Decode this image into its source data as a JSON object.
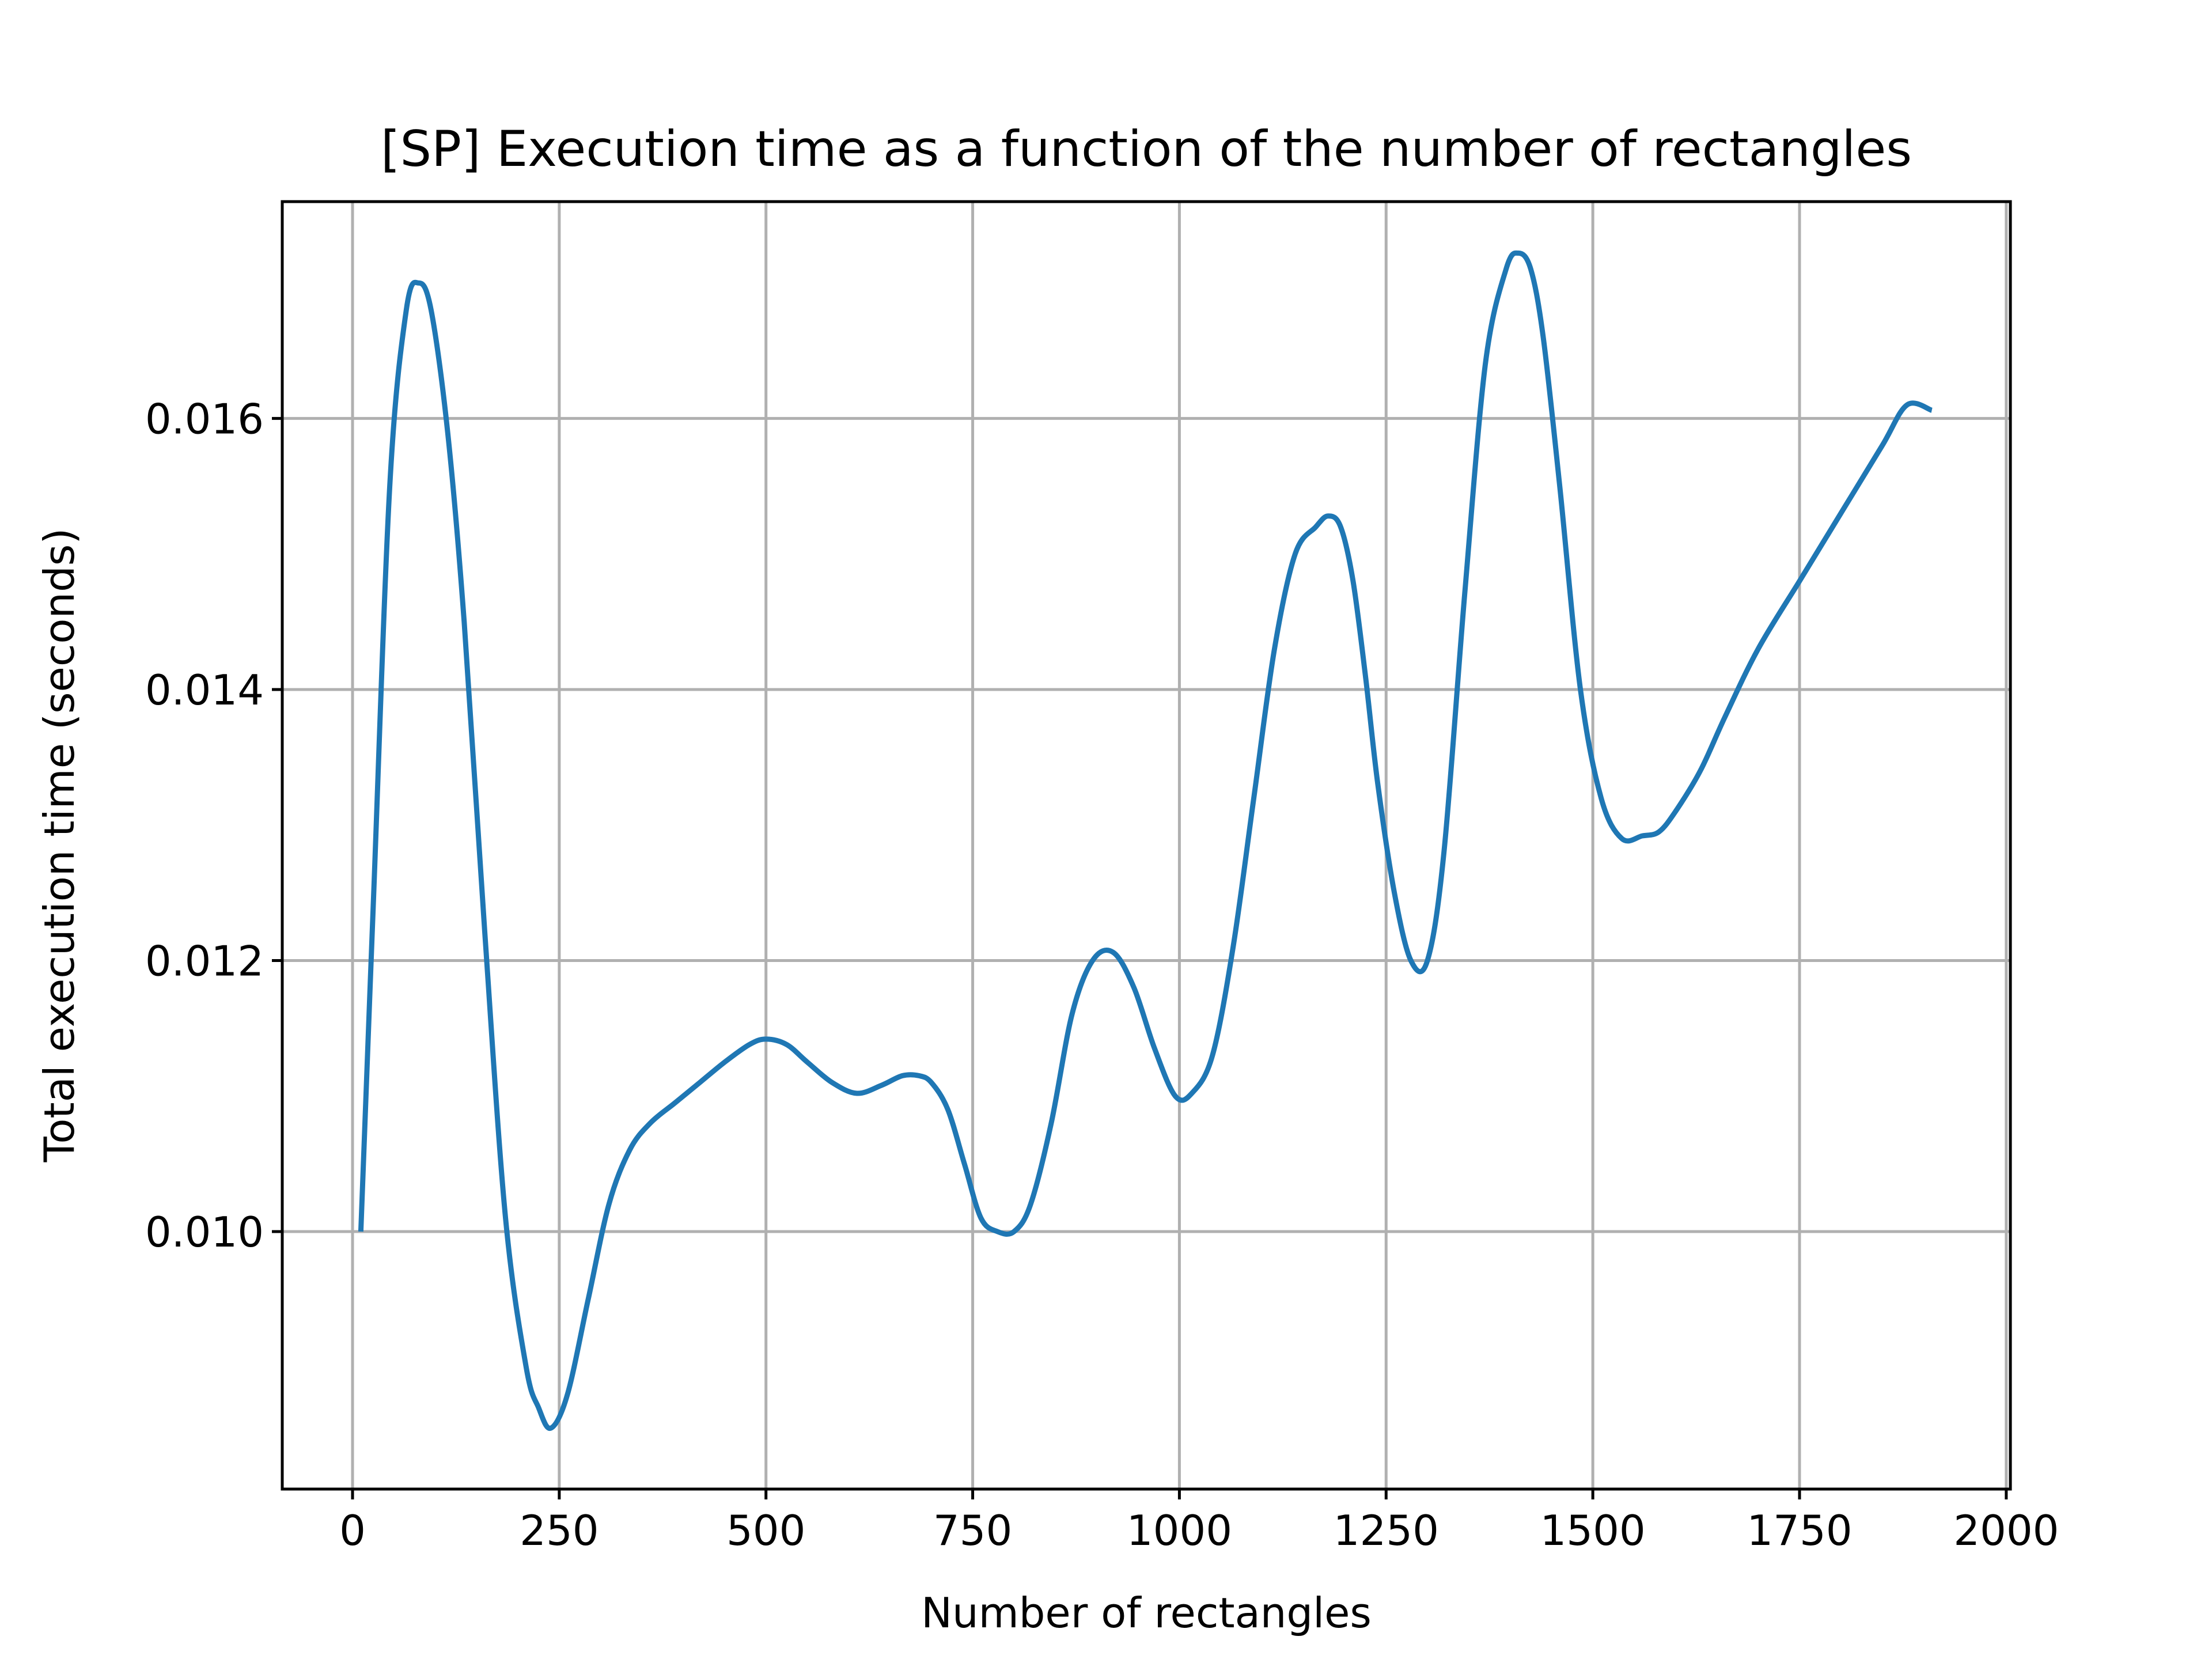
{
  "chart_data": {
    "type": "line",
    "title": "[SP] Execution time as a function of the number of rectangles",
    "xlabel": "Number of rectangles",
    "ylabel": "Total execution time (seconds)",
    "xlim": [
      -85,
      2005
    ],
    "ylim": [
      0.0081,
      0.0176
    ],
    "grid": true,
    "x_ticks": [
      0,
      250,
      500,
      750,
      1000,
      1250,
      1500,
      1750,
      2000
    ],
    "x_tick_labels": [
      "0",
      "250",
      "500",
      "750",
      "1000",
      "1250",
      "1500",
      "1750",
      "2000"
    ],
    "y_ticks": [
      0.01,
      0.012,
      0.014,
      0.016
    ],
    "y_tick_labels": [
      "0.010",
      "0.012",
      "0.014",
      "0.016"
    ],
    "color": "#1f77b4",
    "series": [
      {
        "name": "execution time",
        "x": [
          10,
          25,
          45,
          65,
          80,
          95,
          115,
          135,
          160,
          185,
          210,
          225,
          240,
          260,
          285,
          310,
          335,
          360,
          390,
          420,
          450,
          480,
          500,
          525,
          550,
          580,
          610,
          640,
          665,
          685,
          700,
          720,
          740,
          760,
          780,
          800,
          820,
          845,
          870,
          895,
          920,
          945,
          970,
          995,
          1015,
          1040,
          1065,
          1090,
          1115,
          1140,
          1165,
          1180,
          1195,
          1210,
          1225,
          1240,
          1260,
          1280,
          1300,
          1320,
          1345,
          1370,
          1395,
          1410,
          1425,
          1440,
          1460,
          1485,
          1510,
          1535,
          1560,
          1580,
          1600,
          1630,
          1660,
          1700,
          1750,
          1800,
          1850,
          1880,
          1910
        ],
        "y": [
          0.01,
          0.0124,
          0.0155,
          0.0168,
          0.017,
          0.0168,
          0.0159,
          0.0145,
          0.0122,
          0.0101,
          0.009,
          0.0087,
          0.00855,
          0.0088,
          0.0095,
          0.0102,
          0.0106,
          0.0108,
          0.01095,
          0.0111,
          0.01125,
          0.01138,
          0.01142,
          0.01138,
          0.01125,
          0.0111,
          0.01102,
          0.01108,
          0.01115,
          0.01115,
          0.0111,
          0.0109,
          0.0105,
          0.0101,
          0.01,
          0.01,
          0.0102,
          0.0108,
          0.0116,
          0.012,
          0.01206,
          0.0118,
          0.01135,
          0.011,
          0.01102,
          0.0113,
          0.0121,
          0.0132,
          0.0143,
          0.015,
          0.0152,
          0.01528,
          0.0152,
          0.0148,
          0.0141,
          0.0133,
          0.0125,
          0.012,
          0.012,
          0.0128,
          0.0147,
          0.0164,
          0.0171,
          0.01722,
          0.0171,
          0.0166,
          0.0155,
          0.014,
          0.0132,
          0.0129,
          0.01292,
          0.01295,
          0.0131,
          0.0134,
          0.0138,
          0.0143,
          0.0148,
          0.0153,
          0.0158,
          0.0161,
          0.01606
        ]
      }
    ]
  }
}
